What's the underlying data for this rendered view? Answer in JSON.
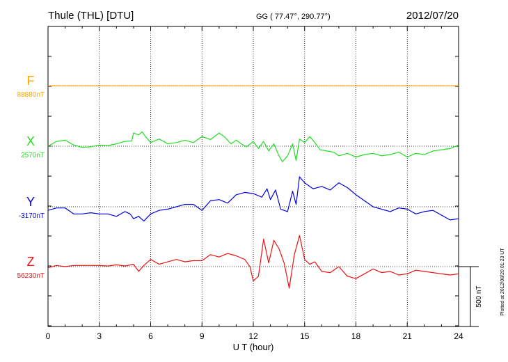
{
  "header": {
    "station": "Thule (THL)  [DTU]",
    "coords": "GG ( 77.47°, 290.77°)",
    "date": "2012/07/20"
  },
  "side_note": "Plotted at 2012/08/20 01:23 UT",
  "scale_label": "500 nT",
  "chart_data": {
    "type": "line",
    "xlabel": "U T (hour)",
    "xlim": [
      0,
      24
    ],
    "xticks": [
      "0",
      "3",
      "6",
      "9",
      "12",
      "15",
      "18",
      "21",
      "24"
    ],
    "grid": true,
    "series": [
      {
        "name": "F",
        "baseline_label": "88880nT",
        "color": "#ffa500",
        "x": [
          0,
          24
        ],
        "y": [
          -2,
          -2
        ]
      },
      {
        "name": "X",
        "baseline_label": "2570nT",
        "color": "#22dd22",
        "x": [
          0,
          0.5,
          1,
          1.5,
          2,
          2.5,
          3,
          3.5,
          4,
          4.5,
          4.9,
          5,
          5.3,
          5.5,
          5.7,
          6,
          6.5,
          7,
          7.5,
          8,
          8.5,
          9,
          9.5,
          10,
          10.3,
          10.7,
          11,
          11.3,
          11.6,
          12,
          12.3,
          12.6,
          12.9,
          13.2,
          13.5,
          13.7,
          14,
          14.3,
          14.5,
          14.7,
          15,
          15.3,
          15.6,
          15.9,
          16.3,
          16.7,
          17,
          17.5,
          18,
          18.5,
          19,
          19.5,
          20,
          20.5,
          21,
          21.5,
          22,
          22.5,
          23,
          23.5,
          24
        ],
        "y": [
          0,
          40,
          50,
          10,
          -10,
          -5,
          10,
          5,
          20,
          40,
          45,
          110,
          95,
          120,
          80,
          30,
          60,
          20,
          30,
          50,
          30,
          80,
          55,
          110,
          80,
          20,
          50,
          20,
          -5,
          40,
          -20,
          40,
          -40,
          20,
          -80,
          -130,
          -80,
          20,
          -120,
          60,
          30,
          80,
          30,
          -30,
          -40,
          -50,
          -80,
          -60,
          -90,
          -70,
          -60,
          -80,
          -70,
          -50,
          -90,
          -60,
          -70,
          -40,
          -30,
          -20,
          10
        ]
      },
      {
        "name": "Y",
        "baseline_label": "-3170nT",
        "color": "#0000dd",
        "x": [
          0,
          0.5,
          1,
          1.5,
          2,
          2.5,
          3,
          3.5,
          4,
          4.5,
          4.8,
          5,
          5.3,
          5.6,
          6,
          6.5,
          7,
          7.5,
          8,
          8.5,
          9,
          9.5,
          10,
          10.5,
          11,
          11.5,
          12,
          12.5,
          12.8,
          13,
          13.3,
          13.6,
          14,
          14.3,
          14.5,
          14.7,
          15,
          15.5,
          16,
          16.5,
          17,
          17.5,
          18,
          18.5,
          19,
          19.5,
          20,
          20.5,
          21,
          21.5,
          22,
          22.5,
          23,
          23.5,
          24
        ],
        "y": [
          -30,
          -10,
          -10,
          -60,
          -60,
          -50,
          -60,
          -60,
          -80,
          -40,
          -60,
          -100,
          -80,
          -120,
          -60,
          -30,
          -20,
          0,
          20,
          20,
          -30,
          50,
          60,
          30,
          100,
          120,
          110,
          80,
          150,
          60,
          140,
          -20,
          -40,
          130,
          20,
          250,
          200,
          150,
          170,
          140,
          200,
          160,
          100,
          50,
          0,
          -20,
          -40,
          -10,
          -20,
          -60,
          -40,
          -30,
          -70,
          -110,
          -100
        ]
      },
      {
        "name": "Z",
        "baseline_label": "56230nT",
        "color": "#ee1111",
        "x": [
          0,
          0.5,
          1,
          1.5,
          2,
          2.5,
          3,
          3.5,
          4,
          4.5,
          5,
          5.3,
          5.6,
          6,
          6.5,
          7,
          7.5,
          8,
          8.5,
          9,
          9.5,
          10,
          10.5,
          11,
          11.5,
          11.8,
          12,
          12.3,
          12.6,
          12.9,
          13.2,
          13.5,
          13.8,
          14.1,
          14.4,
          14.7,
          15,
          15.3,
          15.6,
          16,
          16.5,
          17,
          17.5,
          18,
          18.5,
          19,
          19.5,
          20,
          20.5,
          21,
          21.5,
          22,
          22.5,
          23,
          23.5,
          24
        ],
        "y": [
          -10,
          10,
          0,
          10,
          10,
          10,
          10,
          5,
          15,
          5,
          20,
          -40,
          10,
          60,
          20,
          40,
          60,
          40,
          50,
          50,
          100,
          80,
          110,
          90,
          60,
          0,
          -120,
          -80,
          230,
          30,
          220,
          150,
          30,
          -180,
          100,
          260,
          60,
          20,
          40,
          -40,
          -50,
          0,
          -80,
          -100,
          -60,
          -20,
          -50,
          -40,
          -70,
          -60,
          -30,
          -40,
          -50,
          -60,
          -70,
          -60
        ]
      }
    ]
  }
}
